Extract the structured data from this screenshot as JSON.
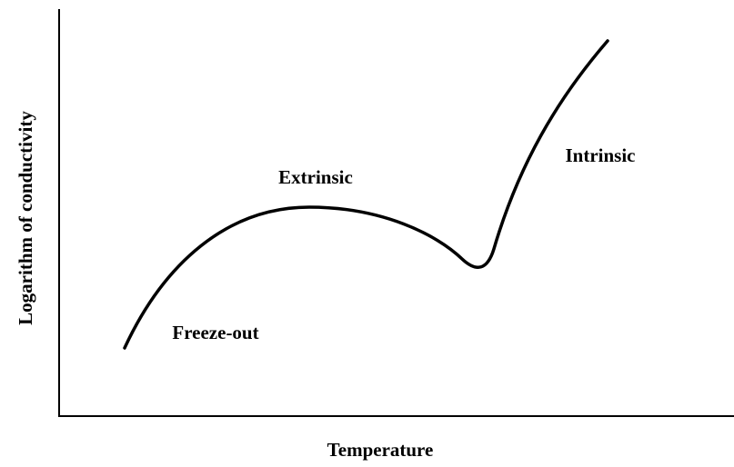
{
  "axes": {
    "x_label": "Temperature",
    "y_label": "Logarithm of conductivity"
  },
  "regions": [
    {
      "label": "Freeze-out"
    },
    {
      "label": "Extrinsic"
    },
    {
      "label": "Intrinsic"
    }
  ]
}
